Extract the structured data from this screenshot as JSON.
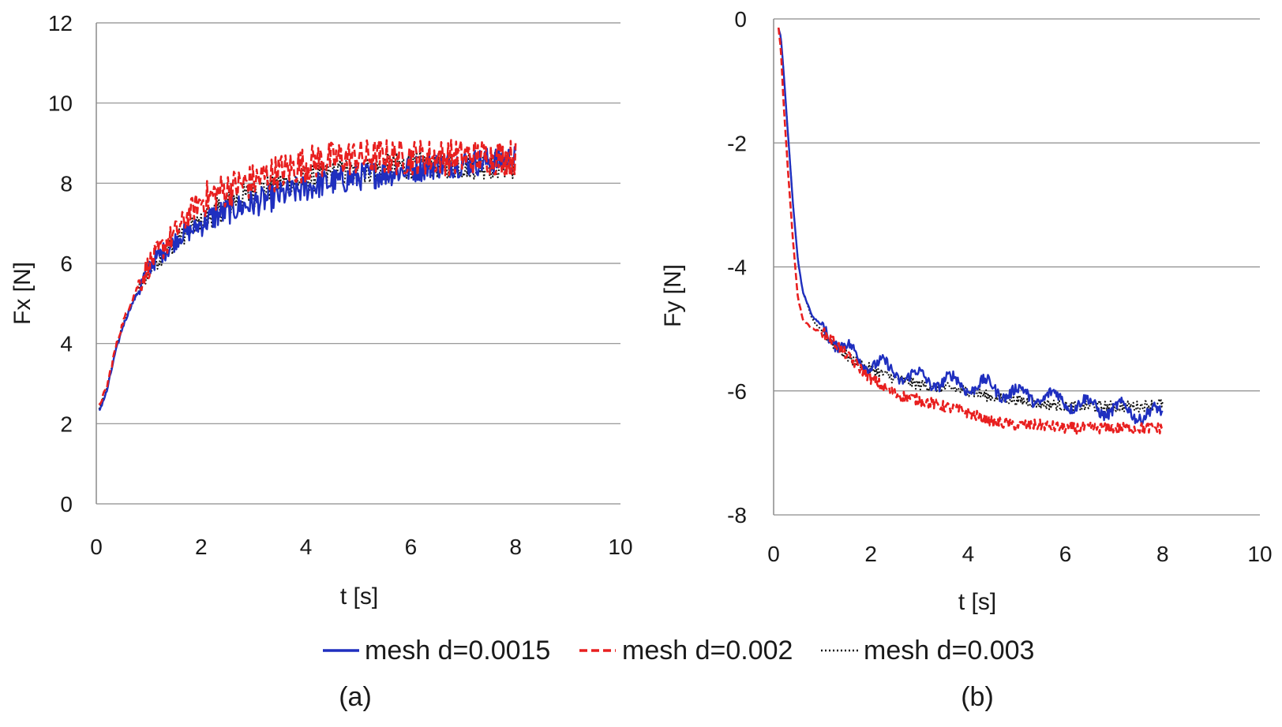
{
  "chart_data": [
    {
      "type": "line",
      "panel_label": "(a)",
      "xlabel": "t [s]",
      "ylabel": "Fx [N]",
      "xlim": [
        0,
        10
      ],
      "ylim": [
        0,
        12
      ],
      "xticks": [
        "0",
        "2",
        "4",
        "6",
        "8",
        "10"
      ],
      "yticks": [
        "0",
        "2",
        "4",
        "6",
        "8",
        "10",
        "12"
      ],
      "grid": "horizontal",
      "series": [
        {
          "name": "mesh d=0.0015",
          "style": "solid",
          "color": "#1f2fbf",
          "x": [
            0.05,
            0.2,
            0.35,
            0.5,
            0.65,
            0.8,
            1.0,
            1.2,
            1.4,
            1.6,
            1.8,
            2.0,
            2.3,
            2.6,
            3.0,
            3.4,
            3.8,
            4.2,
            4.6,
            5.0,
            5.5,
            6.0,
            6.5,
            7.0,
            7.5,
            8.0
          ],
          "y": [
            2.3,
            2.8,
            3.7,
            4.4,
            4.9,
            5.3,
            5.9,
            6.2,
            6.4,
            6.7,
            6.8,
            7.0,
            7.2,
            7.35,
            7.5,
            7.65,
            7.8,
            7.95,
            8.05,
            8.15,
            8.25,
            8.35,
            8.45,
            8.5,
            8.55,
            8.6
          ]
        },
        {
          "name": "mesh d=0.002",
          "style": "dashed",
          "color": "#e81f1f",
          "x": [
            0.05,
            0.2,
            0.35,
            0.5,
            0.65,
            0.8,
            1.0,
            1.2,
            1.4,
            1.6,
            1.8,
            2.0,
            2.3,
            2.6,
            3.0,
            3.4,
            3.8,
            4.2,
            4.6,
            5.0,
            5.5,
            6.0,
            6.5,
            7.0,
            7.5,
            8.0
          ],
          "y": [
            2.45,
            2.9,
            3.8,
            4.5,
            5.0,
            5.45,
            5.95,
            6.3,
            6.6,
            6.9,
            7.3,
            7.55,
            7.75,
            7.9,
            8.05,
            8.25,
            8.4,
            8.55,
            8.6,
            8.65,
            8.65,
            8.65,
            8.65,
            8.65,
            8.65,
            8.65
          ]
        },
        {
          "name": "mesh d=0.003",
          "style": "dotted",
          "color": "#111111",
          "x": [
            0.05,
            0.2,
            0.35,
            0.5,
            0.65,
            0.8,
            1.0,
            1.2,
            1.4,
            1.6,
            1.8,
            2.0,
            2.3,
            2.6,
            3.0,
            3.4,
            3.8,
            4.2,
            4.6,
            5.0,
            5.5,
            6.0,
            6.5,
            7.0,
            7.5,
            8.0
          ],
          "y": [
            2.35,
            2.85,
            3.75,
            4.45,
            4.9,
            5.3,
            5.85,
            6.15,
            6.4,
            6.65,
            6.85,
            7.05,
            7.3,
            7.55,
            7.75,
            7.95,
            8.05,
            8.15,
            8.25,
            8.3,
            8.4,
            8.45,
            8.45,
            8.45,
            8.45,
            8.45
          ]
        }
      ]
    },
    {
      "type": "line",
      "panel_label": "(b)",
      "xlabel": "t [s]",
      "ylabel": "Fy [N]",
      "xlim": [
        0,
        10
      ],
      "ylim": [
        -8,
        0
      ],
      "xticks": [
        "0",
        "2",
        "4",
        "6",
        "8",
        "10"
      ],
      "yticks": [
        "-8",
        "-6",
        "-4",
        "-2",
        "0"
      ],
      "grid": "horizontal",
      "series": [
        {
          "name": "mesh d=0.0015",
          "style": "solid",
          "color": "#1f2fbf",
          "x": [
            0.1,
            0.15,
            0.2,
            0.3,
            0.4,
            0.5,
            0.6,
            0.8,
            1.0,
            1.3,
            1.6,
            2.0,
            2.5,
            3.0,
            3.5,
            4.0,
            4.5,
            5.0,
            5.5,
            6.0,
            6.5,
            7.0,
            7.5,
            8.0
          ],
          "y": [
            -0.15,
            -0.3,
            -0.8,
            -1.9,
            -3.0,
            -3.9,
            -4.4,
            -4.8,
            -4.95,
            -5.2,
            -5.4,
            -5.55,
            -5.7,
            -5.8,
            -5.85,
            -5.9,
            -5.95,
            -6.05,
            -6.1,
            -6.15,
            -6.25,
            -6.3,
            -6.35,
            -6.4
          ]
        },
        {
          "name": "mesh d=0.002",
          "style": "dashed",
          "color": "#e81f1f",
          "x": [
            0.1,
            0.15,
            0.2,
            0.3,
            0.4,
            0.5,
            0.6,
            0.8,
            1.0,
            1.3,
            1.6,
            2.0,
            2.5,
            3.0,
            3.5,
            4.0,
            4.5,
            5.0,
            5.5,
            6.0,
            6.5,
            7.0,
            7.5,
            8.0
          ],
          "y": [
            -0.15,
            -0.5,
            -1.3,
            -2.5,
            -3.6,
            -4.5,
            -4.85,
            -5.0,
            -5.05,
            -5.25,
            -5.5,
            -5.8,
            -6.05,
            -6.15,
            -6.25,
            -6.35,
            -6.5,
            -6.55,
            -6.55,
            -6.6,
            -6.6,
            -6.6,
            -6.6,
            -6.6
          ]
        },
        {
          "name": "mesh d=0.003",
          "style": "dotted",
          "color": "#111111",
          "x": [
            0.1,
            0.15,
            0.2,
            0.3,
            0.4,
            0.5,
            0.6,
            0.8,
            1.0,
            1.3,
            1.6,
            2.0,
            2.5,
            3.0,
            3.5,
            4.0,
            4.5,
            5.0,
            5.5,
            6.0,
            6.5,
            7.0,
            7.5,
            8.0
          ],
          "y": [
            -0.15,
            -0.3,
            -0.8,
            -1.9,
            -3.0,
            -3.9,
            -4.4,
            -4.85,
            -5.05,
            -5.3,
            -5.5,
            -5.65,
            -5.8,
            -5.9,
            -5.95,
            -6.0,
            -6.1,
            -6.15,
            -6.2,
            -6.25,
            -6.25,
            -6.25,
            -6.25,
            -6.2
          ]
        }
      ]
    }
  ],
  "legend": {
    "position": "bottom-center",
    "items": [
      "mesh d=0.0015",
      "mesh d=0.002",
      "mesh d=0.003"
    ]
  }
}
